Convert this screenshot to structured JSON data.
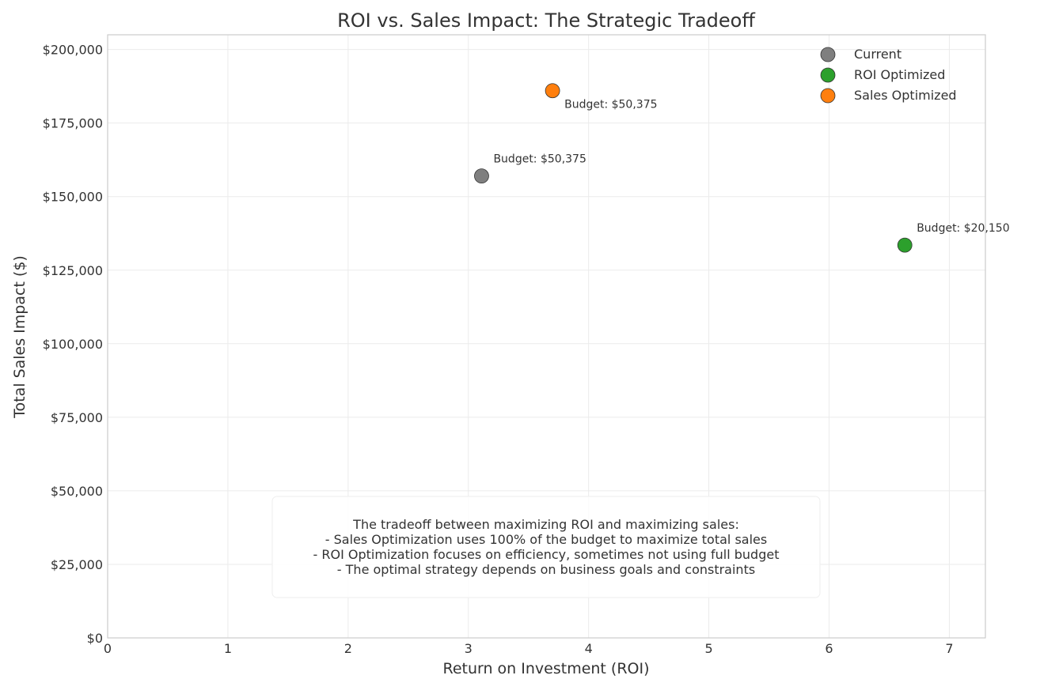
{
  "chart_data": {
    "type": "scatter",
    "title": "ROI vs. Sales Impact: The Strategic Tradeoff",
    "xlabel": "Return on Investment (ROI)",
    "ylabel": "Total Sales Impact ($)",
    "xlim": [
      0,
      7.3
    ],
    "ylim": [
      0,
      205000
    ],
    "x_ticks": [
      0,
      1,
      2,
      3,
      4,
      5,
      6,
      7
    ],
    "x_tick_labels": [
      "0",
      "1",
      "2",
      "3",
      "4",
      "5",
      "6",
      "7"
    ],
    "y_ticks": [
      0,
      25000,
      50000,
      75000,
      100000,
      125000,
      150000,
      175000,
      200000
    ],
    "y_tick_labels": [
      "$0",
      "$25,000",
      "$50,000",
      "$75,000",
      "$100,000",
      "$125,000",
      "$150,000",
      "$175,000",
      "$200,000"
    ],
    "grid": true,
    "legend_position": "top-right",
    "series": [
      {
        "name": "Current",
        "color": "#7f7f7f",
        "x": 3.11,
        "y": 157000,
        "annotation": "Budget: $50,375",
        "annotation_side": "above"
      },
      {
        "name": "ROI Optimized",
        "color": "#2ca02c",
        "x": 6.63,
        "y": 133500,
        "annotation": "Budget: $20,150",
        "annotation_side": "above"
      },
      {
        "name": "Sales Optimized",
        "color": "#ff7f0e",
        "x": 3.7,
        "y": 186000,
        "annotation": "Budget: $50,375",
        "annotation_side": "below"
      }
    ],
    "note_lines": [
      "The tradeoff between maximizing ROI and maximizing sales:",
      "- Sales Optimization uses 100% of the budget to maximize total sales",
      "- ROI Optimization focuses on efficiency, sometimes not using full budget",
      "- The optimal strategy depends on business goals and constraints"
    ]
  }
}
